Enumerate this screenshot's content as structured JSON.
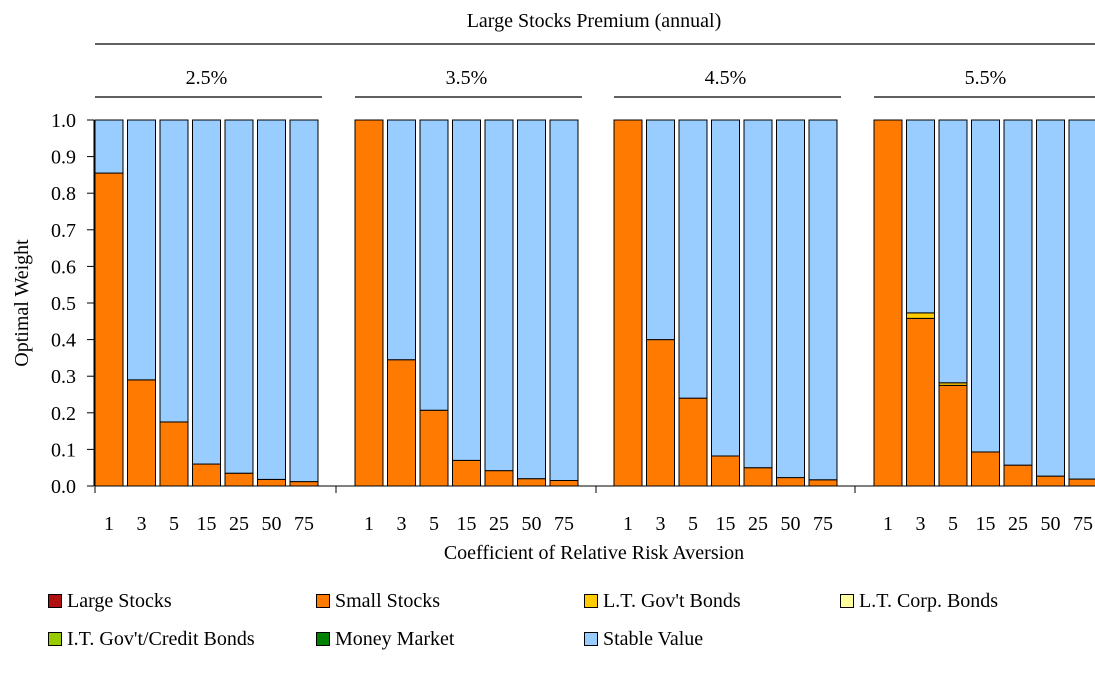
{
  "chart_data": {
    "type": "bar",
    "stacked": true,
    "title": "Large Stocks Premium (annual)",
    "xlabel": "Coefficient of Relative Risk Aversion",
    "ylabel": "Optimal Weight",
    "ylim": [
      0,
      1.0
    ],
    "yticks": [
      "0.0",
      "0.1",
      "0.2",
      "0.3",
      "0.4",
      "0.5",
      "0.6",
      "0.7",
      "0.8",
      "0.9",
      "1.0"
    ],
    "categories": [
      "1",
      "3",
      "5",
      "15",
      "25",
      "50",
      "75"
    ],
    "groups": [
      {
        "label": "2.5%",
        "values": {
          "Large Stocks": [
            0,
            0,
            0,
            0,
            0,
            0,
            0
          ],
          "Small Stocks": [
            0.855,
            0.29,
            0.175,
            0.06,
            0.035,
            0.018,
            0.012
          ],
          "L.T. Gov't Bonds": [
            0,
            0,
            0,
            0,
            0,
            0,
            0
          ],
          "L.T. Corp. Bonds": [
            0,
            0,
            0,
            0,
            0,
            0,
            0
          ],
          "I.T. Gov't/Credit Bonds": [
            0,
            0,
            0,
            0,
            0,
            0,
            0
          ],
          "Money Market": [
            0,
            0,
            0,
            0,
            0,
            0,
            0
          ],
          "Stable Value": [
            0.145,
            0.71,
            0.825,
            0.94,
            0.965,
            0.982,
            0.988
          ]
        }
      },
      {
        "label": "3.5%",
        "values": {
          "Large Stocks": [
            0,
            0,
            0,
            0,
            0,
            0,
            0
          ],
          "Small Stocks": [
            1.0,
            0.345,
            0.207,
            0.07,
            0.042,
            0.02,
            0.015
          ],
          "L.T. Gov't Bonds": [
            0,
            0,
            0,
            0,
            0,
            0,
            0
          ],
          "L.T. Corp. Bonds": [
            0,
            0,
            0,
            0,
            0,
            0,
            0
          ],
          "I.T. Gov't/Credit Bonds": [
            0,
            0,
            0,
            0,
            0,
            0,
            0
          ],
          "Money Market": [
            0,
            0,
            0,
            0,
            0,
            0,
            0
          ],
          "Stable Value": [
            0,
            0.655,
            0.793,
            0.93,
            0.958,
            0.98,
            0.985
          ]
        }
      },
      {
        "label": "4.5%",
        "values": {
          "Large Stocks": [
            0,
            0,
            0,
            0,
            0,
            0,
            0
          ],
          "Small Stocks": [
            1.0,
            0.4,
            0.24,
            0.082,
            0.05,
            0.023,
            0.017
          ],
          "L.T. Gov't Bonds": [
            0,
            0,
            0,
            0,
            0,
            0,
            0
          ],
          "L.T. Corp. Bonds": [
            0,
            0,
            0,
            0,
            0,
            0,
            0
          ],
          "I.T. Gov't/Credit Bonds": [
            0,
            0,
            0,
            0,
            0,
            0,
            0
          ],
          "Money Market": [
            0,
            0,
            0,
            0,
            0,
            0,
            0
          ],
          "Stable Value": [
            0,
            0.6,
            0.76,
            0.918,
            0.95,
            0.977,
            0.983
          ]
        }
      },
      {
        "label": "5.5%",
        "values": {
          "Large Stocks": [
            0,
            0,
            0,
            0,
            0,
            0,
            0
          ],
          "Small Stocks": [
            1.0,
            0.458,
            0.275,
            0.093,
            0.057,
            0.027,
            0.019
          ],
          "L.T. Gov't Bonds": [
            0,
            0.015,
            0.007,
            0,
            0,
            0,
            0
          ],
          "L.T. Corp. Bonds": [
            0,
            0,
            0,
            0,
            0,
            0,
            0
          ],
          "I.T. Gov't/Credit Bonds": [
            0,
            0,
            0,
            0,
            0,
            0,
            0
          ],
          "Money Market": [
            0,
            0,
            0,
            0,
            0,
            0,
            0
          ],
          "Stable Value": [
            0,
            0.527,
            0.718,
            0.907,
            0.943,
            0.973,
            0.981
          ]
        }
      }
    ],
    "series": [
      {
        "name": "Large Stocks",
        "color": "#b01010"
      },
      {
        "name": "Small Stocks",
        "color": "#ff7a00"
      },
      {
        "name": "L.T. Gov't Bonds",
        "color": "#ffcc00"
      },
      {
        "name": "L.T. Corp. Bonds",
        "color": "#ffffa0"
      },
      {
        "name": "I.T. Gov't/Credit Bonds",
        "color": "#99cc00"
      },
      {
        "name": "Money Market",
        "color": "#008000"
      },
      {
        "name": "Stable Value",
        "color": "#99ccff"
      }
    ],
    "grid": false,
    "legend_position": "bottom"
  }
}
